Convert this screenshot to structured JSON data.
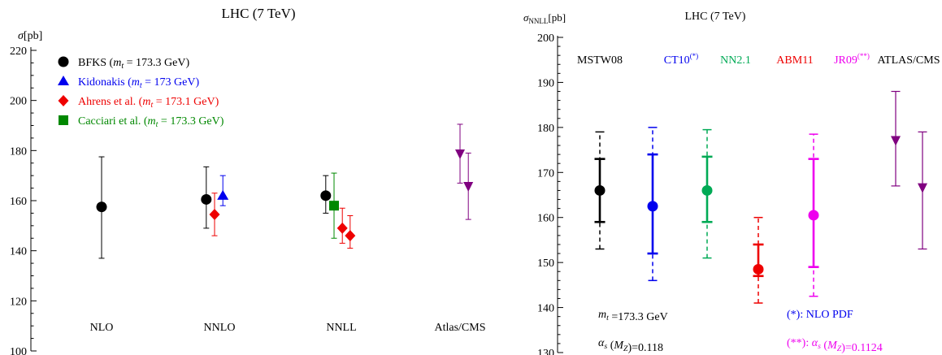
{
  "chart_data": [
    {
      "type": "scatter",
      "title": "LHC (7 TeV)",
      "ylabel": "σ[pb]",
      "xlabel": "",
      "ylim": [
        100,
        220
      ],
      "yticks": [
        100,
        120,
        140,
        160,
        180,
        200,
        220
      ],
      "grid": false,
      "legend_position": "top-left",
      "categories": [
        "NLO",
        "NNLO",
        "NNLL",
        "Atlas/CMS"
      ],
      "legend": [
        {
          "name": "BFKS",
          "mass_note": "(m_t = 173.3 GeV)",
          "color": "#000000",
          "marker": "circle"
        },
        {
          "name": "Kidonakis",
          "mass_note": "(m_t = 173 GeV)",
          "color": "#0000ee",
          "marker": "triangle"
        },
        {
          "name": "Ahrens et al.",
          "mass_note": "(m_t = 173.1 GeV)",
          "color": "#ee0000",
          "marker": "diamond"
        },
        {
          "name": "Cacciari et al.",
          "mass_note": "(m_t = 173.3 GeV)",
          "color": "#008800",
          "marker": "square"
        }
      ],
      "points": [
        {
          "series": "BFKS",
          "category": "NLO",
          "offset": 0,
          "value": 157.5,
          "low": 137,
          "high": 177.5,
          "marker": "circle",
          "color": "#000000"
        },
        {
          "series": "BFKS",
          "category": "NNLO",
          "offset": -0.27,
          "value": 160.5,
          "low": 149,
          "high": 173.5,
          "marker": "circle",
          "color": "#000000"
        },
        {
          "series": "Ahrens et al.",
          "category": "NNLO",
          "offset": -0.1,
          "value": 154.5,
          "low": 146,
          "high": 163,
          "marker": "diamond",
          "color": "#ee0000"
        },
        {
          "series": "Kidonakis",
          "category": "NNLO",
          "offset": 0.07,
          "value": 162,
          "low": 158,
          "high": 170,
          "marker": "triangle",
          "color": "#0000ee"
        },
        {
          "series": "BFKS",
          "category": "NNLL",
          "offset": -0.32,
          "value": 162,
          "low": 155,
          "high": 170,
          "marker": "circle",
          "color": "#000000"
        },
        {
          "series": "Cacciari et al.",
          "category": "NNLL",
          "offset": -0.15,
          "value": 158,
          "low": 145,
          "high": 171,
          "marker": "square",
          "color": "#008800"
        },
        {
          "series": "Ahrens et al.",
          "category": "NNLL",
          "offset": 0.02,
          "value": 149,
          "low": 143,
          "high": 157,
          "marker": "diamond",
          "color": "#ee0000"
        },
        {
          "series": "Ahrens et al.",
          "category": "NNLL",
          "offset": 0.18,
          "value": 146,
          "low": 141,
          "high": 154,
          "marker": "diamond",
          "color": "#ee0000"
        },
        {
          "series": "ATLAS",
          "category": "Atlas/CMS",
          "offset": 0.0,
          "value": 178.5,
          "low": 167,
          "high": 190.5,
          "marker": "triangle-down",
          "color": "#800080"
        },
        {
          "series": "CMS",
          "category": "Atlas/CMS",
          "offset": 0.17,
          "value": 165.5,
          "low": 152.5,
          "high": 179,
          "marker": "triangle-down",
          "color": "#800080"
        }
      ]
    },
    {
      "type": "scatter",
      "title": "LHC (7 TeV)",
      "ylabel": "σ",
      "ylabel_sub": "NNLL",
      "ylabel_unit": "[pb]",
      "xlabel": "",
      "ylim": [
        130,
        200
      ],
      "yticks": [
        130,
        140,
        150,
        160,
        170,
        180,
        190,
        200
      ],
      "grid": false,
      "categories": [
        "MSTW08",
        "CT10",
        "NN2.1",
        "ABM11",
        "JR09",
        "ATLAS/CMS"
      ],
      "category_superscripts": [
        "",
        "(*)",
        "",
        "",
        "(**)",
        ""
      ],
      "category_colors": [
        "#000000",
        "#0000ee",
        "#00aa55",
        "#ee0000",
        "#ee00ee",
        "#000000"
      ],
      "points": [
        {
          "category": "MSTW08",
          "value": 166,
          "inner_low": 159,
          "inner_high": 173,
          "outer_low": 153,
          "outer_high": 179,
          "color": "#000000",
          "marker": "circle"
        },
        {
          "category": "CT10",
          "value": 162.5,
          "inner_low": 152,
          "inner_high": 174,
          "outer_low": 146,
          "outer_high": 180,
          "color": "#0000ee",
          "marker": "circle"
        },
        {
          "category": "NN2.1",
          "value": 166,
          "inner_low": 159,
          "inner_high": 173.5,
          "outer_low": 151,
          "outer_high": 179.5,
          "color": "#00aa55",
          "marker": "circle"
        },
        {
          "category": "ABM11",
          "value": 148.5,
          "inner_low": 147,
          "inner_high": 154,
          "outer_low": 141,
          "outer_high": 160,
          "color": "#ee0000",
          "marker": "circle"
        },
        {
          "category": "JR09",
          "value": 160.5,
          "inner_low": 149,
          "inner_high": 173,
          "outer_low": 142.5,
          "outer_high": 178.5,
          "color": "#ee00ee",
          "marker": "circle"
        },
        {
          "category": "ATLAS/CMS",
          "sub": 0,
          "value": 177,
          "low": 167,
          "high": 188,
          "color": "#800080",
          "marker": "triangle-down"
        },
        {
          "category": "ATLAS/CMS",
          "sub": 1,
          "value": 166.5,
          "low": 153,
          "high": 179,
          "color": "#800080",
          "marker": "triangle-down"
        }
      ],
      "annotations": [
        {
          "text": "m_t =173.3 GeV",
          "color": "#000000"
        },
        {
          "text": "α_s (M_Z)=0.118",
          "color": "#000000"
        },
        {
          "text": "(*): NLO PDF",
          "color": "#0000ee"
        },
        {
          "text": "(**): α_s (M_Z)=0.1124",
          "color": "#ee00ee"
        }
      ]
    }
  ]
}
